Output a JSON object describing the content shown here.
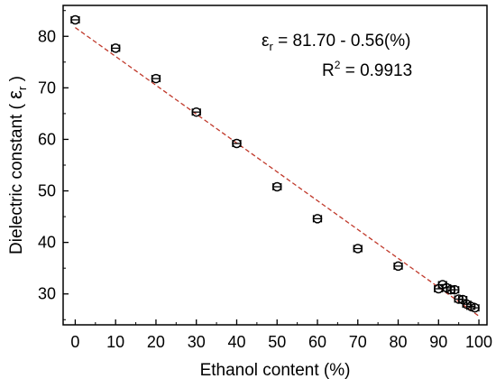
{
  "chart_data": {
    "type": "scatter",
    "title": "",
    "xlabel": "Ethanol content (%)",
    "ylabel": {
      "prefix": "Dielectric constant ( ",
      "symbol": "ε",
      "subscript": "r",
      "suffix": " )"
    },
    "xlim": [
      -3,
      102
    ],
    "ylim": [
      24,
      86
    ],
    "xticks": [
      "0",
      "10",
      "20",
      "30",
      "40",
      "50",
      "60",
      "70",
      "80",
      "90",
      "100"
    ],
    "yticks": [
      "30",
      "40",
      "50",
      "60",
      "70",
      "80"
    ],
    "xtick_values": [
      0,
      10,
      20,
      30,
      40,
      50,
      60,
      70,
      80,
      90,
      100
    ],
    "ytick_values": [
      30,
      40,
      50,
      60,
      70,
      80
    ],
    "series": [
      {
        "marker": "open-circle",
        "color": "#000000",
        "points": [
          {
            "x": 0,
            "y": 83.2
          },
          {
            "x": 10,
            "y": 77.7
          },
          {
            "x": 20,
            "y": 71.8
          },
          {
            "x": 30,
            "y": 65.3
          },
          {
            "x": 40,
            "y": 59.2
          },
          {
            "x": 50,
            "y": 50.8
          },
          {
            "x": 60,
            "y": 44.6
          },
          {
            "x": 70,
            "y": 38.8
          },
          {
            "x": 80,
            "y": 35.4
          },
          {
            "x": 90,
            "y": 31.0
          },
          {
            "x": 91,
            "y": 31.8
          },
          {
            "x": 92,
            "y": 31.2
          },
          {
            "x": 93,
            "y": 30.8
          },
          {
            "x": 94,
            "y": 30.8
          },
          {
            "x": 95,
            "y": 29.0
          },
          {
            "x": 96,
            "y": 28.9
          },
          {
            "x": 97,
            "y": 28.0
          },
          {
            "x": 98,
            "y": 27.6
          },
          {
            "x": 99,
            "y": 27.3
          }
        ],
        "x_error": 1
      }
    ],
    "fit_line": {
      "intercept": 81.7,
      "slope": -0.56,
      "x_range": [
        0,
        100
      ],
      "color": "#c0392b",
      "style": "dashed"
    },
    "annotations": {
      "equation": {
        "symbol": "ε",
        "subscript": "r",
        "rest": " = 81.70 - 0.56(%)"
      },
      "r_squared": {
        "prefix": "R",
        "superscript": "2",
        "rest": " = 0.9913"
      }
    },
    "grid": false,
    "legend": "none"
  }
}
